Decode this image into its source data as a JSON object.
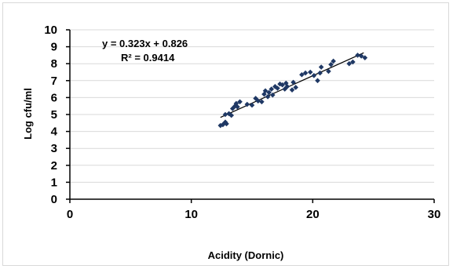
{
  "chart_data": {
    "type": "scatter",
    "title": "",
    "xlabel": "Acidity (Dornic)",
    "ylabel": "Log cfu/ml",
    "xlim": [
      0,
      30
    ],
    "ylim": [
      0,
      10
    ],
    "x_ticks": [
      0,
      10,
      20,
      30
    ],
    "y_ticks": [
      0,
      1,
      2,
      3,
      4,
      5,
      6,
      7,
      8,
      9,
      10
    ],
    "grid": "horizontal",
    "marker_color": "#1f3864",
    "trendline": {
      "type": "linear",
      "slope": 0.323,
      "intercept": 0.826,
      "x_range": [
        12.4,
        24.2
      ],
      "equation_label": "y = 0.323x + 0.826",
      "r2_label": "R² = 0.9414"
    },
    "points": [
      [
        12.4,
        4.35
      ],
      [
        12.6,
        4.4
      ],
      [
        12.8,
        4.55
      ],
      [
        12.9,
        4.45
      ],
      [
        12.8,
        5.0
      ],
      [
        13.1,
        5.05
      ],
      [
        13.3,
        4.95
      ],
      [
        13.4,
        5.35
      ],
      [
        13.6,
        5.5
      ],
      [
        13.7,
        5.65
      ],
      [
        13.8,
        5.45
      ],
      [
        14.0,
        5.75
      ],
      [
        14.6,
        5.6
      ],
      [
        15.0,
        5.55
      ],
      [
        15.3,
        5.95
      ],
      [
        15.5,
        5.8
      ],
      [
        15.8,
        5.75
      ],
      [
        16.0,
        6.2
      ],
      [
        16.1,
        6.4
      ],
      [
        16.3,
        6.05
      ],
      [
        16.4,
        6.3
      ],
      [
        16.6,
        6.5
      ],
      [
        16.7,
        6.15
      ],
      [
        16.9,
        6.65
      ],
      [
        17.1,
        6.55
      ],
      [
        17.3,
        6.8
      ],
      [
        17.5,
        6.75
      ],
      [
        17.7,
        6.5
      ],
      [
        17.8,
        6.85
      ],
      [
        17.9,
        6.65
      ],
      [
        18.3,
        6.45
      ],
      [
        18.4,
        6.9
      ],
      [
        18.6,
        6.6
      ],
      [
        19.1,
        7.35
      ],
      [
        19.4,
        7.45
      ],
      [
        19.8,
        7.5
      ],
      [
        20.1,
        7.3
      ],
      [
        20.4,
        7.0
      ],
      [
        20.6,
        7.45
      ],
      [
        20.7,
        7.8
      ],
      [
        21.3,
        7.55
      ],
      [
        21.5,
        7.95
      ],
      [
        21.7,
        8.15
      ],
      [
        23.0,
        8.0
      ],
      [
        23.3,
        8.1
      ],
      [
        23.7,
        8.5
      ],
      [
        24.0,
        8.45
      ],
      [
        24.3,
        8.35
      ]
    ]
  }
}
